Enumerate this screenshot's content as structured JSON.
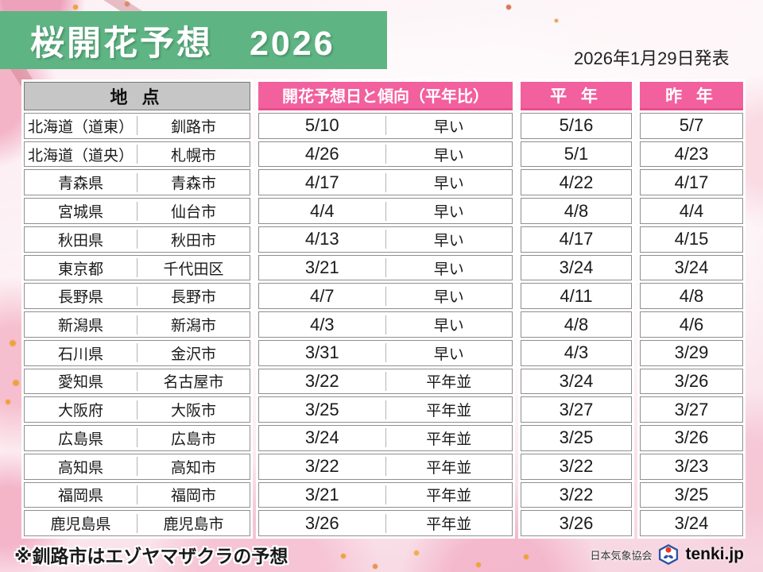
{
  "title": "桜開花予想　2026",
  "announce_date": "2026年1月29日発表",
  "chart_data": {
    "type": "table",
    "title": "桜開花予想 2026",
    "columns": [
      "地 点",
      "開花予想日と傾向（平年比）",
      "平 年",
      "昨 年"
    ],
    "header_spans": [
      2,
      2,
      1,
      1
    ],
    "rows": [
      [
        "北海道（道東）",
        "釧路市",
        "5/10",
        "早い",
        "5/16",
        "5/7"
      ],
      [
        "北海道（道央）",
        "札幌市",
        "4/26",
        "早い",
        "5/1",
        "4/23"
      ],
      [
        "青森県",
        "青森市",
        "4/17",
        "早い",
        "4/22",
        "4/17"
      ],
      [
        "宮城県",
        "仙台市",
        "4/4",
        "早い",
        "4/8",
        "4/4"
      ],
      [
        "秋田県",
        "秋田市",
        "4/13",
        "早い",
        "4/17",
        "4/15"
      ],
      [
        "東京都",
        "千代田区",
        "3/21",
        "早い",
        "3/24",
        "3/24"
      ],
      [
        "長野県",
        "長野市",
        "4/7",
        "早い",
        "4/11",
        "4/8"
      ],
      [
        "新潟県",
        "新潟市",
        "4/3",
        "早い",
        "4/8",
        "4/6"
      ],
      [
        "石川県",
        "金沢市",
        "3/31",
        "早い",
        "4/3",
        "3/29"
      ],
      [
        "愛知県",
        "名古屋市",
        "3/22",
        "平年並",
        "3/24",
        "3/26"
      ],
      [
        "大阪府",
        "大阪市",
        "3/25",
        "平年並",
        "3/27",
        "3/27"
      ],
      [
        "広島県",
        "広島市",
        "3/24",
        "平年並",
        "3/25",
        "3/26"
      ],
      [
        "高知県",
        "高知市",
        "3/22",
        "平年並",
        "3/22",
        "3/23"
      ],
      [
        "福岡県",
        "福岡市",
        "3/21",
        "平年並",
        "3/22",
        "3/25"
      ],
      [
        "鹿児島県",
        "鹿児島市",
        "3/26",
        "平年並",
        "3/26",
        "3/24"
      ]
    ]
  },
  "footnote": "※釧路市はエゾヤマザクラの予想",
  "footer": {
    "org": "日本気象協会",
    "brand": "tenki.jp"
  },
  "colors": {
    "banner_green": "#5eb483",
    "header_pink": "#f2609e",
    "header_pink_edge": "#e94f90",
    "header_gray": "#c6c6c6",
    "row_border": "#8f8f8f",
    "logo_blue": "#2b54a3",
    "logo_red": "#e83828"
  }
}
